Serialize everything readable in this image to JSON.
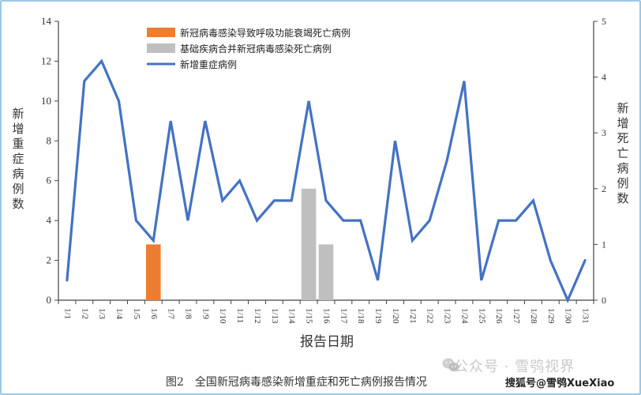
{
  "chart_data": {
    "type": "bar+line",
    "title": "图2　全国新冠病毒感染新增重症和死亡病例报告情况",
    "xlabel": "报告日期",
    "ylabel_left": "新增重症病例数",
    "ylabel_right": "新增死亡病例数",
    "ylim_left": [
      0,
      14
    ],
    "ylim_right": [
      0,
      5
    ],
    "yticks_left": [
      0,
      2,
      4,
      6,
      8,
      10,
      12,
      14
    ],
    "yticks_right": [
      0,
      1,
      2,
      3,
      4,
      5
    ],
    "grid": false,
    "legend_position": "top-center",
    "categories": [
      "1/1",
      "1/2",
      "1/3",
      "1/4",
      "1/5",
      "1/6",
      "1/7",
      "1/8",
      "1/9",
      "1/10",
      "1/11",
      "1/12",
      "1/13",
      "1/14",
      "1/15",
      "1/16",
      "1/17",
      "1/18",
      "1/19",
      "1/20",
      "1/21",
      "1/22",
      "1/23",
      "1/24",
      "1/25",
      "1/26",
      "1/27",
      "1/28",
      "1/29",
      "1/30",
      "1/31"
    ],
    "series": [
      {
        "name": "新冠病毒感染导致呼吸功能衰竭死亡病例",
        "type": "bar",
        "axis": "right",
        "color": "#ed7d31",
        "values": [
          0,
          0,
          0,
          0,
          0,
          1,
          0,
          0,
          0,
          0,
          0,
          0,
          0,
          0,
          0,
          0,
          0,
          0,
          0,
          0,
          0,
          0,
          0,
          0,
          0,
          0,
          0,
          0,
          0,
          0,
          0
        ]
      },
      {
        "name": "基础疾病合并新冠病毒感染死亡病例",
        "type": "bar",
        "axis": "right",
        "color": "#bfbfbf",
        "values": [
          0,
          0,
          0,
          0,
          0,
          0,
          0,
          0,
          0,
          0,
          0,
          0,
          0,
          0,
          2,
          1,
          0,
          0,
          0,
          0,
          0,
          0,
          0,
          0,
          0,
          0,
          0,
          0,
          0,
          0,
          0
        ]
      },
      {
        "name": "新增重症病例",
        "type": "line",
        "axis": "left",
        "color": "#4472c4",
        "values": [
          1,
          11,
          12,
          10,
          4,
          3,
          9,
          4,
          9,
          5,
          6,
          4,
          5,
          5,
          10,
          5,
          4,
          4,
          1,
          8,
          3,
          4,
          7,
          11,
          1,
          4,
          4,
          5,
          2,
          0,
          2
        ]
      }
    ]
  },
  "caption": "图2　全国新冠病毒感染新增重症和死亡病例报告情况",
  "watermark": {
    "line1": "公众号 · 雪鸮视界",
    "line2": "搜狐号@雪鸮XueXiao"
  }
}
